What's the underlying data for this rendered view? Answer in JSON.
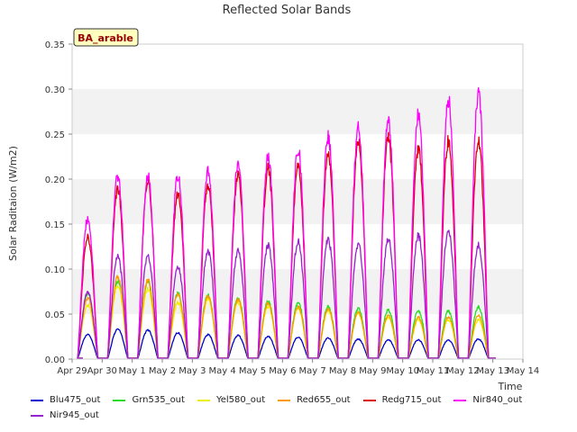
{
  "chart_data": {
    "type": "line",
    "title": "Reflected Solar Bands",
    "xlabel": "Time",
    "ylabel": "Solar Raditaion (W/m2)",
    "annotation": "BA_arable",
    "ylim": [
      0,
      0.35
    ],
    "xlim": [
      "Apr 29",
      "May 14"
    ],
    "yticks": [
      "0.00",
      "0.05",
      "0.10",
      "0.15",
      "0.20",
      "0.25",
      "0.30",
      "0.35"
    ],
    "xticks": [
      "Apr 29",
      "Apr 30",
      "May 1",
      "May 2",
      "May 3",
      "May 4",
      "May 5",
      "May 6",
      "May 7",
      "May 8",
      "May 9",
      "May 10",
      "May 11",
      "May 12",
      "May 13",
      "May 14"
    ],
    "grid": "horizontal bands",
    "legend_position": "bottom",
    "days": [
      "Apr 30",
      "May 1",
      "May 2",
      "May 3",
      "May 4",
      "May 5",
      "May 6",
      "May 7",
      "May 8",
      "May 9",
      "May 10",
      "May 11",
      "May 12",
      "May 13"
    ],
    "series": [
      {
        "name": "Blu475_out",
        "color": "#0000cc",
        "daily_peak": [
          0.028,
          0.034,
          0.033,
          0.03,
          0.028,
          0.027,
          0.026,
          0.025,
          0.024,
          0.023,
          0.022,
          0.022,
          0.022,
          0.023
        ]
      },
      {
        "name": "Grn535_out",
        "color": "#22dd22",
        "daily_peak": [
          0.075,
          0.09,
          0.088,
          0.075,
          0.073,
          0.07,
          0.066,
          0.064,
          0.06,
          0.058,
          0.056,
          0.055,
          0.055,
          0.06
        ]
      },
      {
        "name": "Yel580_out",
        "color": "#eeee00",
        "daily_peak": [
          0.062,
          0.085,
          0.08,
          0.065,
          0.068,
          0.064,
          0.06,
          0.058,
          0.055,
          0.052,
          0.048,
          0.045,
          0.045,
          0.045
        ]
      },
      {
        "name": "Red655_out",
        "color": "#ff9900",
        "daily_peak": [
          0.07,
          0.095,
          0.09,
          0.075,
          0.072,
          0.068,
          0.064,
          0.06,
          0.057,
          0.053,
          0.05,
          0.048,
          0.048,
          0.05
        ]
      },
      {
        "name": "Redg715_out",
        "color": "#dd0000",
        "daily_peak": [
          0.14,
          0.195,
          0.205,
          0.19,
          0.2,
          0.21,
          0.218,
          0.22,
          0.235,
          0.25,
          0.255,
          0.24,
          0.25,
          0.25
        ]
      },
      {
        "name": "Nir840_out",
        "color": "#ff00ff",
        "daily_peak": [
          0.16,
          0.21,
          0.21,
          0.21,
          0.215,
          0.225,
          0.233,
          0.24,
          0.255,
          0.265,
          0.273,
          0.28,
          0.297,
          0.305
        ]
      },
      {
        "name": "Nir945_out",
        "color": "#9922cc",
        "daily_peak": [
          0.077,
          0.117,
          0.118,
          0.105,
          0.124,
          0.124,
          0.13,
          0.135,
          0.137,
          0.132,
          0.137,
          0.142,
          0.147,
          0.13
        ]
      }
    ]
  }
}
